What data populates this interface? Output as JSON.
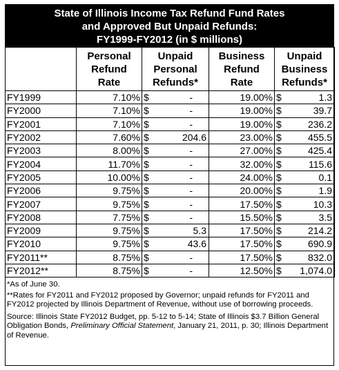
{
  "title": {
    "line1": "State of Illinois Income Tax Refund Fund Rates",
    "line2": "and Approved But Unpaid Refunds:",
    "line3": "FY1999-FY2012 (in $ millions)"
  },
  "headers": [
    [
      "",
      "",
      "",
      ""
    ],
    [
      "Personal",
      "Refund",
      "Rate",
      ""
    ],
    [
      "Unpaid",
      "Personal",
      "Refunds*",
      ""
    ],
    [
      "Business",
      "Refund",
      "Rate",
      ""
    ],
    [
      "Unpaid",
      "Business",
      "Refunds*",
      ""
    ]
  ],
  "rows": [
    {
      "year": "FY1999",
      "personal_rate": "7.10%",
      "unpaid_personal": "-",
      "business_rate": "19.00%",
      "unpaid_business": "1.3"
    },
    {
      "year": "FY2000",
      "personal_rate": "7.10%",
      "unpaid_personal": "-",
      "business_rate": "19.00%",
      "unpaid_business": "39.7"
    },
    {
      "year": "FY2001",
      "personal_rate": "7.10%",
      "unpaid_personal": "-",
      "business_rate": "19.00%",
      "unpaid_business": "236.2"
    },
    {
      "year": "FY2002",
      "personal_rate": "7.60%",
      "unpaid_personal": "204.6",
      "business_rate": "23.00%",
      "unpaid_business": "455.5"
    },
    {
      "year": "FY2003",
      "personal_rate": "8.00%",
      "unpaid_personal": "-",
      "business_rate": "27.00%",
      "unpaid_business": "425.4"
    },
    {
      "year": "FY2004",
      "personal_rate": "11.70%",
      "unpaid_personal": "-",
      "business_rate": "32.00%",
      "unpaid_business": "115.6"
    },
    {
      "year": "FY2005",
      "personal_rate": "10.00%",
      "unpaid_personal": "-",
      "business_rate": "24.00%",
      "unpaid_business": "0.1"
    },
    {
      "year": "FY2006",
      "personal_rate": "9.75%",
      "unpaid_personal": "-",
      "business_rate": "20.00%",
      "unpaid_business": "1.9"
    },
    {
      "year": "FY2007",
      "personal_rate": "9.75%",
      "unpaid_personal": "-",
      "business_rate": "17.50%",
      "unpaid_business": "10.3"
    },
    {
      "year": "FY2008",
      "personal_rate": "7.75%",
      "unpaid_personal": "-",
      "business_rate": "15.50%",
      "unpaid_business": "3.5"
    },
    {
      "year": "FY2009",
      "personal_rate": "9.75%",
      "unpaid_personal": "5.3",
      "business_rate": "17.50%",
      "unpaid_business": "214.2"
    },
    {
      "year": "FY2010",
      "personal_rate": "9.75%",
      "unpaid_personal": "43.6",
      "business_rate": "17.50%",
      "unpaid_business": "690.9"
    },
    {
      "year": "FY2011**",
      "personal_rate": "8.75%",
      "unpaid_personal": "-",
      "business_rate": "17.50%",
      "unpaid_business": "832.0"
    },
    {
      "year": "FY2012**",
      "personal_rate": "8.75%",
      "unpaid_personal": "-",
      "business_rate": "12.50%",
      "unpaid_business": "1,074.0"
    }
  ],
  "currency_symbol": "$",
  "notes": {
    "note1": "*As of June 30.",
    "note2": "**Rates for FY2011 and FY2012 proposed by Governor; unpaid refunds for FY2011 and FY2012 projected by Illinois Department of Revenue, without use of borrowing proceeds.",
    "source_a": "Source: Illinois State FY2012 Budget, pp. 5-12 to 5-14; State of Illinois $3.7 Billion General Obligation Bonds, ",
    "source_italic": "Preliminary Official Statement",
    "source_b": ", January 21, 2011, p. 30; Illinois Department of Revenue."
  }
}
